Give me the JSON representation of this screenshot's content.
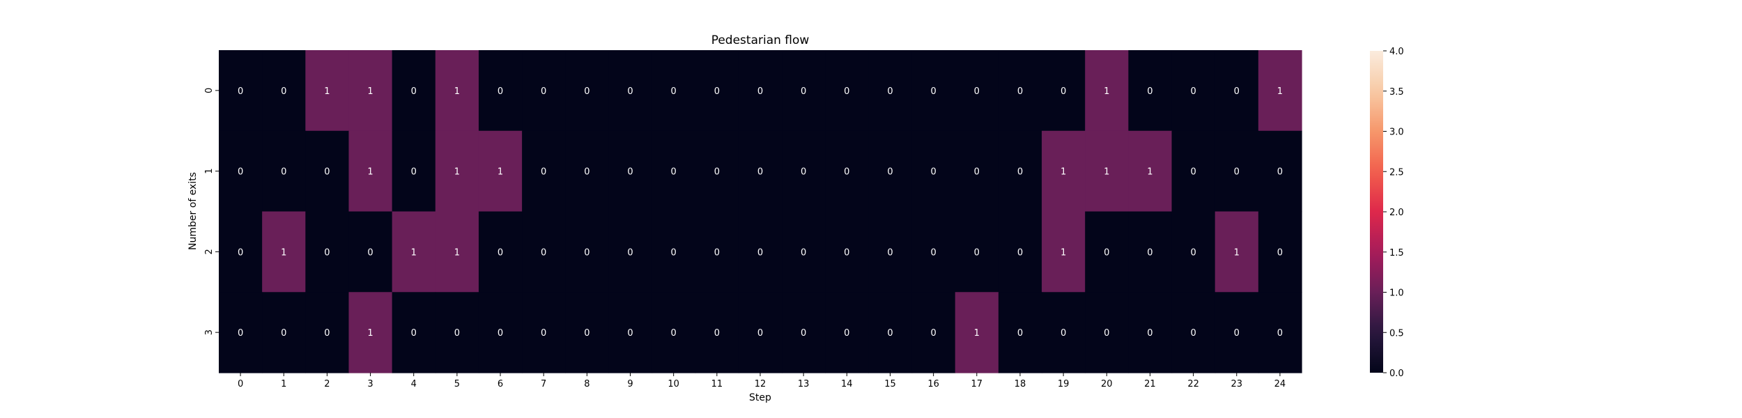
{
  "chart_data": {
    "type": "heatmap",
    "title": "Pedestarian flow",
    "xlabel": "Step",
    "ylabel": "Number of exits",
    "x": [
      "0",
      "1",
      "2",
      "3",
      "4",
      "5",
      "6",
      "7",
      "8",
      "9",
      "10",
      "11",
      "12",
      "13",
      "14",
      "15",
      "16",
      "17",
      "18",
      "19",
      "20",
      "21",
      "22",
      "23",
      "24"
    ],
    "y": [
      "0",
      "1",
      "2",
      "3"
    ],
    "values": [
      [
        0,
        0,
        1,
        1,
        0,
        1,
        0,
        0,
        0,
        0,
        0,
        0,
        0,
        0,
        0,
        0,
        0,
        0,
        0,
        0,
        1,
        0,
        0,
        0,
        1
      ],
      [
        0,
        0,
        0,
        1,
        0,
        1,
        1,
        0,
        0,
        0,
        0,
        0,
        0,
        0,
        0,
        0,
        0,
        0,
        0,
        1,
        1,
        1,
        0,
        0,
        0
      ],
      [
        0,
        1,
        0,
        0,
        1,
        1,
        0,
        0,
        0,
        0,
        0,
        0,
        0,
        0,
        0,
        0,
        0,
        0,
        0,
        1,
        0,
        0,
        0,
        1,
        0
      ],
      [
        0,
        0,
        0,
        1,
        0,
        0,
        0,
        0,
        0,
        0,
        0,
        0,
        0,
        0,
        0,
        0,
        0,
        1,
        0,
        0,
        0,
        0,
        0,
        0,
        0
      ]
    ],
    "colorbar": {
      "min": 0,
      "max": 4,
      "ticks": [
        "0.0",
        "0.5",
        "1.0",
        "1.5",
        "2.0",
        "2.5",
        "3.0",
        "3.5",
        "4.0"
      ],
      "colormap": "rocket"
    },
    "annotations": true
  }
}
